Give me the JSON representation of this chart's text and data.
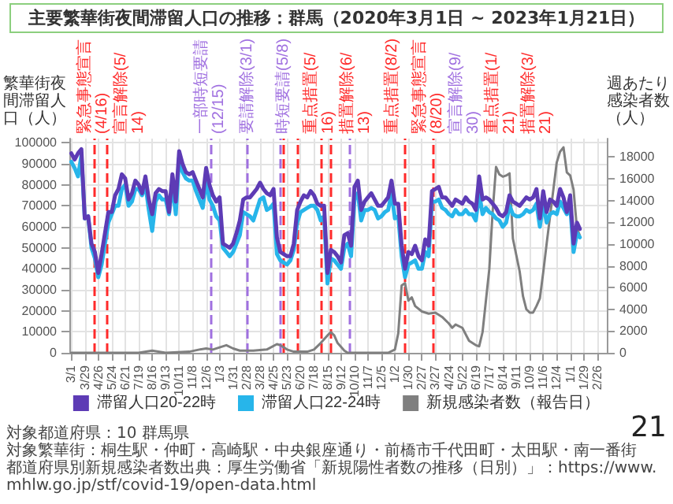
{
  "chart_data": {
    "type": "line",
    "title": "主要繁華街夜間滞留人口の推移：群馬（2020年3月1日 ~ 2023年1月21日）",
    "ylabel": "繁華街夜間滞留人口（人）",
    "y2label": "週あたり感染者数（人）",
    "x": [
      "2020-03-01",
      "2020-03-08",
      "2020-03-15",
      "2020-03-22",
      "2020-03-29",
      "2020-04-05",
      "2020-04-12",
      "2020-04-19",
      "2020-04-26",
      "2020-05-03",
      "2020-05-10",
      "2020-05-17",
      "2020-05-24",
      "2020-05-31",
      "2020-06-07",
      "2020-06-14",
      "2020-06-21",
      "2020-06-28",
      "2020-07-05",
      "2020-07-12",
      "2020-07-19",
      "2020-07-26",
      "2020-08-02",
      "2020-08-09",
      "2020-08-16",
      "2020-08-23",
      "2020-08-30",
      "2020-09-06",
      "2020-09-13",
      "2020-09-20",
      "2020-09-27",
      "2020-10-04",
      "2020-10-11",
      "2020-10-18",
      "2020-10-25",
      "2020-11-01",
      "2020-11-08",
      "2020-11-15",
      "2020-11-22",
      "2020-11-29",
      "2020-12-06",
      "2020-12-13",
      "2020-12-20",
      "2020-12-27",
      "2021-01-03",
      "2021-01-10",
      "2021-01-17",
      "2021-01-24",
      "2021-01-31",
      "2021-02-07",
      "2021-02-14",
      "2021-02-21",
      "2021-02-28",
      "2021-03-07",
      "2021-03-14",
      "2021-03-21",
      "2021-03-28",
      "2021-04-04",
      "2021-04-11",
      "2021-04-18",
      "2021-04-25",
      "2021-05-02",
      "2021-05-09",
      "2021-05-16",
      "2021-05-23",
      "2021-05-30",
      "2021-06-06",
      "2021-06-13",
      "2021-06-20",
      "2021-06-27",
      "2021-07-04",
      "2021-07-11",
      "2021-07-18",
      "2021-07-25",
      "2021-08-01",
      "2021-08-08",
      "2021-08-15",
      "2021-08-22",
      "2021-08-29",
      "2021-09-05",
      "2021-09-12",
      "2021-09-19",
      "2021-09-26",
      "2021-10-03",
      "2021-10-10",
      "2021-10-17",
      "2021-10-24",
      "2021-10-31",
      "2021-11-07",
      "2021-11-14",
      "2021-11-21",
      "2021-11-28",
      "2021-12-05",
      "2021-12-12",
      "2021-12-19",
      "2021-12-26",
      "2022-01-02",
      "2022-01-09",
      "2022-01-16",
      "2022-01-23",
      "2022-01-30",
      "2022-02-06",
      "2022-02-13",
      "2022-02-20",
      "2022-02-27",
      "2022-03-06",
      "2022-03-13",
      "2022-03-20",
      "2022-03-27",
      "2022-04-03",
      "2022-04-10",
      "2022-04-17",
      "2022-04-24",
      "2022-05-01",
      "2022-05-08",
      "2022-05-15",
      "2022-05-22",
      "2022-05-29",
      "2022-06-05",
      "2022-06-12",
      "2022-06-19",
      "2022-06-26",
      "2022-07-03",
      "2022-07-10",
      "2022-07-17",
      "2022-07-24",
      "2022-07-31",
      "2022-08-07",
      "2022-08-14",
      "2022-08-21",
      "2022-08-28",
      "2022-09-04",
      "2022-09-11",
      "2022-09-18",
      "2022-09-25",
      "2022-10-02",
      "2022-10-09",
      "2022-10-16",
      "2022-10-23",
      "2022-10-30",
      "2022-11-06",
      "2022-11-13",
      "2022-11-20",
      "2022-11-27",
      "2022-12-04",
      "2022-12-11",
      "2022-12-18",
      "2022-12-25",
      "2023-01-01",
      "2023-01-08",
      "2023-01-15",
      "2023-01-21"
    ],
    "series": [
      {
        "name": "滞留人口20-22時",
        "color": "#5d3bb5",
        "values": [
          95000,
          92000,
          95000,
          97000,
          64000,
          65000,
          52000,
          48000,
          38000,
          47000,
          57000,
          67000,
          67000,
          75000,
          78000,
          85000,
          83000,
          73000,
          76000,
          82000,
          80000,
          76000,
          84000,
          73000,
          66000,
          76000,
          78000,
          77000,
          77000,
          67000,
          85000,
          72000,
          96000,
          90000,
          86000,
          85000,
          86000,
          82000,
          78000,
          74000,
          88000,
          80000,
          75000,
          72000,
          74000,
          52000,
          51000,
          50000,
          52000,
          57000,
          63000,
          73000,
          74000,
          74000,
          76000,
          78000,
          81000,
          78000,
          76000,
          75000,
          78000,
          55000,
          48000,
          47000,
          46000,
          46000,
          52000,
          68000,
          72000,
          75000,
          74000,
          77000,
          75000,
          71000,
          70000,
          70000,
          38000,
          49000,
          48000,
          46000,
          43000,
          56000,
          57000,
          51000,
          79000,
          82000,
          68000,
          72000,
          74000,
          76000,
          73000,
          70000,
          70000,
          72000,
          74000,
          82000,
          71000,
          71000,
          51000,
          40000,
          48000,
          47000,
          51000,
          46000,
          44000,
          54000,
          51000,
          77000,
          78000,
          79000,
          74000,
          74000,
          72000,
          70000,
          73000,
          72000,
          71000,
          74000,
          72000,
          71000,
          68000,
          84000,
          73000,
          74000,
          73000,
          71000,
          69000,
          66000,
          65000,
          67000,
          75000,
          72000,
          71000,
          70000,
          72000,
          74000,
          73000,
          74000,
          78000,
          64000,
          77000,
          67000,
          73000,
          72000,
          70000,
          78000,
          74000,
          67000,
          75000,
          52000,
          62000,
          59000
        ]
      },
      {
        "name": "滞留人口22-24時",
        "color": "#27b5ea",
        "values": [
          91000,
          88000,
          84000,
          94000,
          64000,
          65000,
          50000,
          45000,
          36000,
          42000,
          52000,
          62000,
          66000,
          70000,
          70000,
          78000,
          80000,
          70000,
          72000,
          78000,
          78000,
          75000,
          80000,
          68000,
          58000,
          72000,
          75000,
          73000,
          73000,
          66000,
          80000,
          66000,
          93000,
          86000,
          83000,
          82000,
          82000,
          77000,
          73000,
          69000,
          82000,
          73000,
          70000,
          65000,
          63000,
          50000,
          48000,
          46000,
          48000,
          52000,
          56000,
          67000,
          66000,
          65000,
          63000,
          68000,
          73000,
          74000,
          68000,
          69000,
          71000,
          47000,
          44000,
          43000,
          42000,
          44000,
          49000,
          62000,
          67000,
          68000,
          69000,
          70000,
          70000,
          68000,
          63000,
          65000,
          33000,
          45000,
          44000,
          42000,
          40000,
          50000,
          52000,
          46000,
          73000,
          76000,
          63000,
          68000,
          68000,
          69000,
          68000,
          64000,
          65000,
          67000,
          68000,
          76000,
          64000,
          65000,
          46000,
          36000,
          42000,
          43000,
          44000,
          40000,
          40000,
          48000,
          46000,
          72000,
          72000,
          73000,
          69000,
          68000,
          66000,
          65000,
          68000,
          66000,
          66000,
          68000,
          66000,
          66000,
          63000,
          76000,
          66000,
          69000,
          67000,
          66000,
          64000,
          63000,
          60000,
          62000,
          70000,
          66000,
          65000,
          65000,
          66000,
          68000,
          67000,
          68000,
          71000,
          60000,
          71000,
          62000,
          66000,
          67000,
          66000,
          72000,
          69000,
          66000,
          70000,
          48000,
          57000,
          55000
        ]
      },
      {
        "name": "新規感染者数（報告日）",
        "color": "#7f7f7f",
        "axis": "y2",
        "x": [
          "2020-03-01",
          "2020-05-10",
          "2020-07-19",
          "2020-08-16",
          "2020-09-13",
          "2020-11-01",
          "2020-11-22",
          "2020-12-06",
          "2020-12-20",
          "2021-01-03",
          "2021-01-17",
          "2021-01-31",
          "2021-02-14",
          "2021-03-14",
          "2021-04-11",
          "2021-05-02",
          "2021-05-09",
          "2021-05-23",
          "2021-06-06",
          "2021-07-04",
          "2021-07-18",
          "2021-08-01",
          "2021-08-15",
          "2021-08-22",
          "2021-08-29",
          "2021-09-05",
          "2021-09-19",
          "2021-09-26",
          "2021-10-10",
          "2021-12-19",
          "2022-01-02",
          "2022-01-09",
          "2022-01-16",
          "2022-01-23",
          "2022-01-30",
          "2022-02-06",
          "2022-02-13",
          "2022-02-27",
          "2022-03-13",
          "2022-03-27",
          "2022-04-10",
          "2022-04-24",
          "2022-05-01",
          "2022-05-08",
          "2022-05-22",
          "2022-06-05",
          "2022-06-19",
          "2022-06-26",
          "2022-07-03",
          "2022-07-17",
          "2022-07-24",
          "2022-07-31",
          "2022-08-07",
          "2022-08-14",
          "2022-08-21",
          "2022-08-28",
          "2022-09-04",
          "2022-09-11",
          "2022-09-18",
          "2022-09-25",
          "2022-10-02",
          "2022-10-09",
          "2022-10-16",
          "2022-10-23",
          "2022-10-30",
          "2022-11-06",
          "2022-11-13",
          "2022-11-20",
          "2022-11-27",
          "2022-12-04",
          "2022-12-11",
          "2022-12-18",
          "2022-12-25",
          "2023-01-01",
          "2023-01-08",
          "2023-01-15",
          "2023-01-21"
        ],
        "values": [
          0,
          0,
          0,
          200,
          0,
          100,
          300,
          400,
          300,
          500,
          700,
          400,
          200,
          200,
          300,
          800,
          700,
          300,
          100,
          100,
          300,
          900,
          1600,
          1900,
          1600,
          900,
          200,
          0,
          0,
          0,
          300,
          1800,
          6200,
          6400,
          4800,
          5100,
          4300,
          3800,
          3600,
          3700,
          3300,
          2700,
          2300,
          2600,
          2300,
          1100,
          700,
          600,
          1900,
          7700,
          13000,
          17100,
          16400,
          16200,
          16300,
          16500,
          10500,
          9000,
          7500,
          5200,
          4000,
          3700,
          3700,
          4300,
          5000,
          7400,
          10000,
          12500,
          15000,
          17500,
          18500,
          18900,
          16600,
          16300,
          15000,
          11400,
          10800
        ]
      }
    ],
    "xlim": [
      "2020-02-26",
      "2023-03-18"
    ],
    "xticks": [
      {
        "value": "2020-03-01",
        "label": "3/1"
      },
      {
        "value": "2020-03-29",
        "label": "3/29"
      },
      {
        "value": "2020-04-26",
        "label": "4/26"
      },
      {
        "value": "2020-05-24",
        "label": "5/24"
      },
      {
        "value": "2020-06-21",
        "label": "6/21"
      },
      {
        "value": "2020-07-19",
        "label": "7/19"
      },
      {
        "value": "2020-08-16",
        "label": "8/16"
      },
      {
        "value": "2020-09-13",
        "label": "9/13"
      },
      {
        "value": "2020-10-11",
        "label": "10/11"
      },
      {
        "value": "2020-11-08",
        "label": "11/8"
      },
      {
        "value": "2020-12-06",
        "label": "12/6"
      },
      {
        "value": "2021-01-03",
        "label": "1/3"
      },
      {
        "value": "2021-01-31",
        "label": "1/31"
      },
      {
        "value": "2021-02-28",
        "label": "2/28"
      },
      {
        "value": "2021-03-28",
        "label": "3/28"
      },
      {
        "value": "2021-04-25",
        "label": "4/25"
      },
      {
        "value": "2021-05-23",
        "label": "5/23"
      },
      {
        "value": "2021-06-20",
        "label": "6/20"
      },
      {
        "value": "2021-07-18",
        "label": "7/18"
      },
      {
        "value": "2021-08-15",
        "label": "8/15"
      },
      {
        "value": "2021-09-12",
        "label": "9/12"
      },
      {
        "value": "2021-10-10",
        "label": "10/10"
      },
      {
        "value": "2021-11-07",
        "label": "11/7"
      },
      {
        "value": "2021-12-05",
        "label": "12/5"
      },
      {
        "value": "2022-01-02",
        "label": "1/2"
      },
      {
        "value": "2022-01-30",
        "label": "1/30"
      },
      {
        "value": "2022-02-27",
        "label": "2/27"
      },
      {
        "value": "2022-03-27",
        "label": "3/27"
      },
      {
        "value": "2022-04-24",
        "label": "4/24"
      },
      {
        "value": "2022-05-22",
        "label": "5/22"
      },
      {
        "value": "2022-06-19",
        "label": "6/19"
      },
      {
        "value": "2022-07-17",
        "label": "7/17"
      },
      {
        "value": "2022-08-14",
        "label": "8/14"
      },
      {
        "value": "2022-09-11",
        "label": "9/11"
      },
      {
        "value": "2022-10-09",
        "label": "10/9"
      },
      {
        "value": "2022-11-06",
        "label": "11/6"
      },
      {
        "value": "2022-12-04",
        "label": "12/4"
      },
      {
        "value": "2023-01-01",
        "label": "1/1"
      },
      {
        "value": "2023-01-29",
        "label": "1/29"
      },
      {
        "value": "2023-02-26",
        "label": "2/26"
      }
    ],
    "ylim": [
      0,
      102000
    ],
    "yticks": [
      0,
      10000,
      20000,
      30000,
      40000,
      50000,
      60000,
      70000,
      80000,
      90000,
      100000
    ],
    "y2lim": [
      0,
      19700
    ],
    "y2ticks": [
      0,
      2000,
      4000,
      6000,
      8000,
      10000,
      12000,
      14000,
      16000,
      18000
    ],
    "ref_lines": [
      {
        "axis": "x",
        "value": "2020-04-16",
        "label": "緊急事態宣言(4/16)",
        "color": "#ff2a2a",
        "line_style": "dashed"
      },
      {
        "axis": "x",
        "value": "2020-05-14",
        "label": "宣言解除(5/14)",
        "color": "#ff2a2a",
        "line_style": "dashed"
      },
      {
        "axis": "x",
        "value": "2020-12-15",
        "label": "一部時短要請(12/15)",
        "color": "#a070e0",
        "line_style": "dashed"
      },
      {
        "axis": "x",
        "value": "2021-03-01",
        "label": "要請解除(3/1)",
        "color": "#a070e0",
        "line_style": "dashed"
      },
      {
        "axis": "x",
        "value": "2021-05-08",
        "label": "時短要請(5/8)",
        "color": "#a070e0",
        "line_style": "dashed"
      },
      {
        "axis": "x",
        "value": "2021-05-16",
        "label": "重点措置(5/16)",
        "color": "#ff2a2a",
        "line_style": "dashed"
      },
      {
        "axis": "x",
        "value": "2021-06-13",
        "label": "措置解除(6/13)",
        "color": "#ff2a2a",
        "line_style": "dashed"
      },
      {
        "axis": "x",
        "value": "2021-08-02",
        "label": "重点措置(8/2)",
        "color": "#ff2a2a",
        "line_style": "dashed"
      },
      {
        "axis": "x",
        "value": "2021-08-20",
        "label": "緊急事態宣言(8/20)",
        "color": "#ff2a2a",
        "line_style": "dashed"
      },
      {
        "axis": "x",
        "value": "2021-09-30",
        "label": "宣言解除(9/30)",
        "color": "#a070e0",
        "line_style": "dashed"
      },
      {
        "axis": "x",
        "value": "2022-01-21",
        "label": "重点措置(1/21)",
        "color": "#ff2a2a",
        "line_style": "dashed"
      },
      {
        "axis": "x",
        "value": "2022-03-21",
        "label": "措置解除(3/21)",
        "color": "#ff2a2a",
        "line_style": "dashed"
      }
    ],
    "annotations": [
      "対象都道府県：10 群馬県",
      "対象繁華街：桐生駅・仲町・高崎駅・中央銀座通り・前橋市千代田町・太田駅・南一番街",
      "都道府県別新規感染者数出典：厚生労働省「新規陽性者数の推移（日別）」：https://www.mhlw.go.jp/stf/covid-19/open-data.html",
      "21"
    ],
    "grid": true,
    "legend": "bottom",
    "line_style": "solid"
  }
}
